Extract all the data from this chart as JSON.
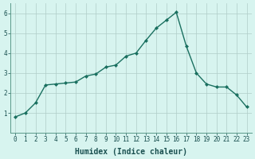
{
  "x": [
    0,
    1,
    2,
    3,
    4,
    5,
    6,
    7,
    8,
    9,
    10,
    11,
    12,
    13,
    14,
    15,
    16,
    17,
    18,
    19,
    20,
    21,
    22,
    23
  ],
  "y": [
    0.8,
    1.0,
    1.5,
    2.4,
    2.45,
    2.5,
    2.55,
    2.85,
    2.95,
    3.3,
    3.4,
    3.85,
    4.0,
    4.65,
    5.25,
    5.65,
    6.05,
    4.35,
    3.0,
    2.45,
    2.3,
    2.3,
    1.9,
    1.3
  ],
  "line_color": "#1a7060",
  "marker": "D",
  "marker_size": 2.0,
  "linewidth": 1.0,
  "xlabel": "Humidex (Indice chaleur)",
  "xlabel_fontsize": 7,
  "xlim": [
    -0.5,
    23.5
  ],
  "ylim": [
    0,
    6.5
  ],
  "yticks": [
    1,
    2,
    3,
    4,
    5,
    6
  ],
  "xticks": [
    0,
    1,
    2,
    3,
    4,
    5,
    6,
    7,
    8,
    9,
    10,
    11,
    12,
    13,
    14,
    15,
    16,
    17,
    18,
    19,
    20,
    21,
    22,
    23
  ],
  "bg_color": "#d7f4ef",
  "grid_color": "#b0ccc8",
  "tick_fontsize": 5.5,
  "fig_bg": "#d7f4ef",
  "spine_color": "#5a9a8a"
}
